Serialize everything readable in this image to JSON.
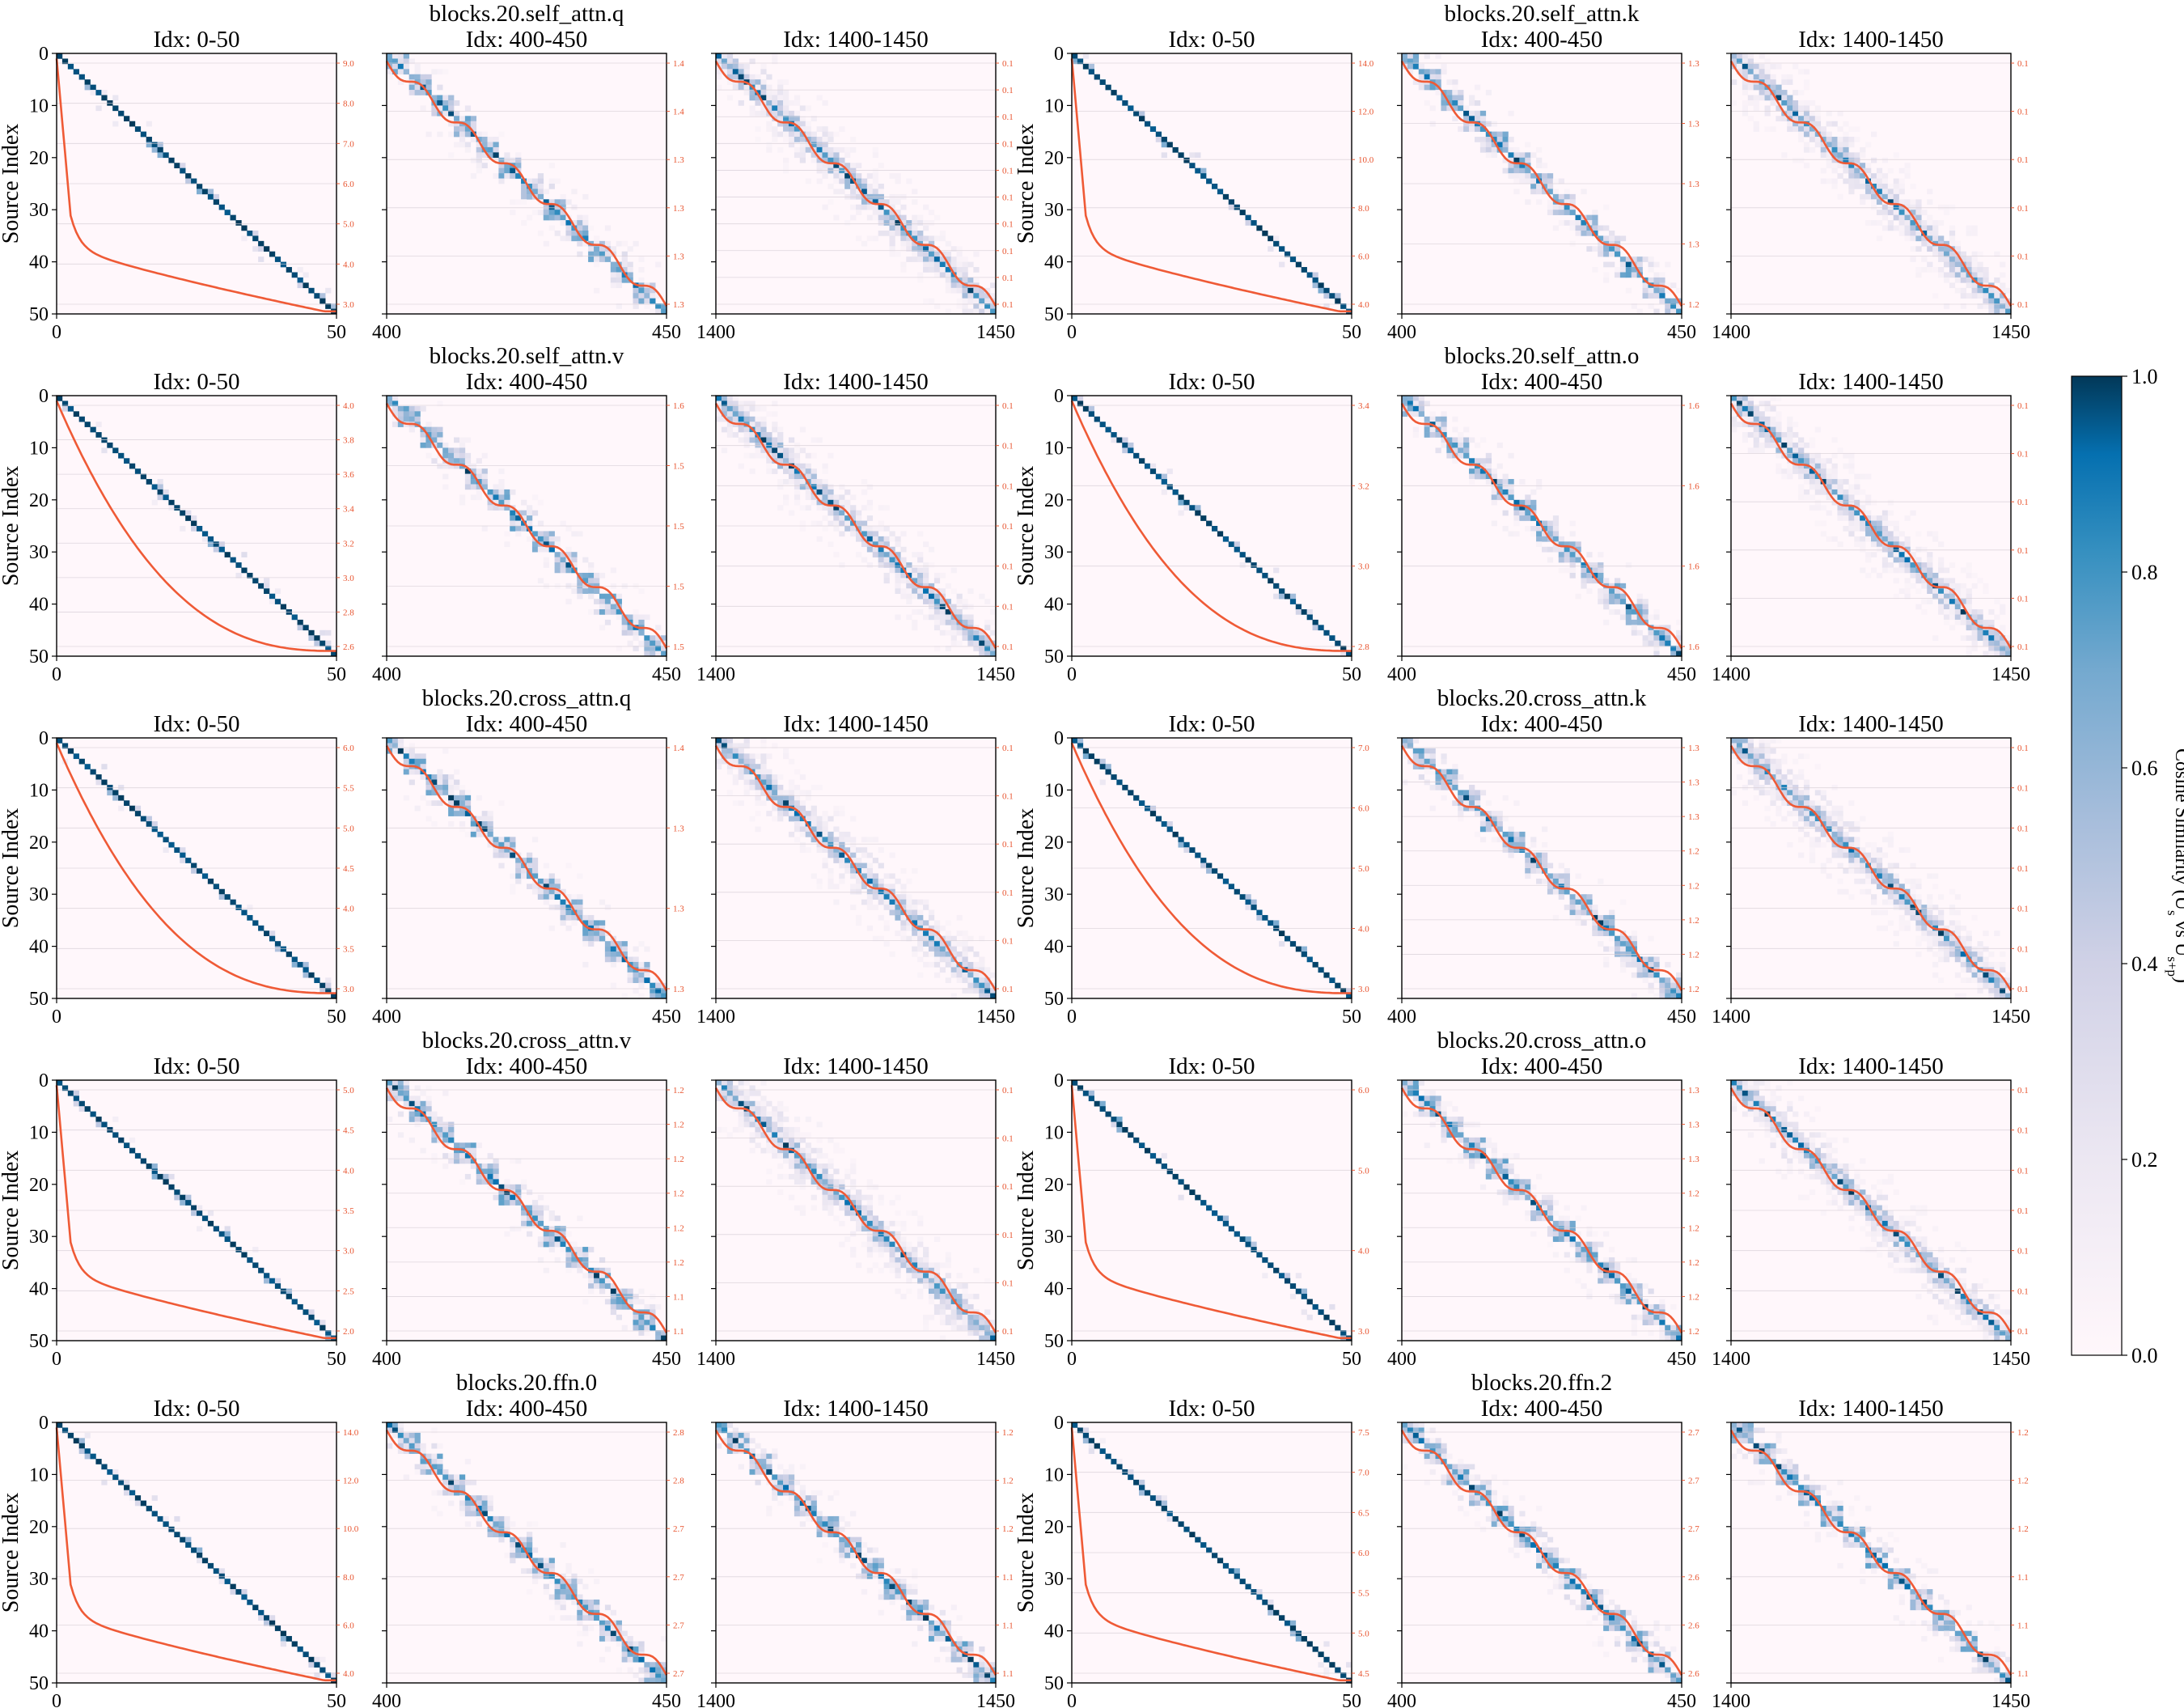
{
  "figure": {
    "ylabel": "Source Index",
    "colors": {
      "heat_low": "#fff7fb",
      "heat_mid": "#74a9cf",
      "heat_high": "#023858",
      "line": "#ef5a36",
      "right_tick": "#e8542f"
    }
  },
  "colorbar": {
    "label": "Cosine Similarity (U",
    "label_sub_s": "s",
    "label_mid": " vs U",
    "label_sub_sp": "s+p",
    "label_end": ")",
    "range": [
      0.0,
      1.0
    ],
    "ticks": [
      "0.0",
      "0.2",
      "0.4",
      "0.6",
      "0.8",
      "1.0"
    ]
  },
  "chart_data": [
    {
      "layer": "blocks.20.self_attn.q",
      "panels": [
        {
          "title": "Idx: 0-50",
          "start": 0,
          "end": 50,
          "type": "heatmap",
          "diag_style": "sharp",
          "right_ticks": [
            "9.0",
            "8.0",
            "7.0",
            "6.0",
            "5.0",
            "4.0",
            "3.0"
          ],
          "curve_shape": "steep"
        },
        {
          "title": "Idx: 400-450",
          "start": 400,
          "end": 450,
          "type": "heatmap",
          "diag_style": "block",
          "right_ticks": [
            "1.4",
            "1.4",
            "1.3",
            "1.3",
            "1.3",
            "1.3"
          ],
          "curve_shape": "linear"
        },
        {
          "title": "Idx: 1400-1450",
          "start": 1400,
          "end": 1450,
          "type": "heatmap",
          "diag_style": "diffuse",
          "right_ticks": [
            "0.1",
            "0.1",
            "0.1",
            "0.1",
            "0.1",
            "0.1",
            "0.1",
            "0.1",
            "0.1",
            "0.1"
          ],
          "curve_shape": "linear"
        }
      ]
    },
    {
      "layer": "blocks.20.self_attn.k",
      "panels": [
        {
          "title": "Idx: 0-50",
          "start": 0,
          "end": 50,
          "type": "heatmap",
          "diag_style": "sharp",
          "right_ticks": [
            "14.0",
            "12.0",
            "10.0",
            "8.0",
            "6.0",
            "4.0"
          ],
          "curve_shape": "steep"
        },
        {
          "title": "Idx: 400-450",
          "start": 400,
          "end": 450,
          "type": "heatmap",
          "diag_style": "block",
          "right_ticks": [
            "1.3",
            "1.3",
            "1.3",
            "1.3",
            "1.2"
          ],
          "curve_shape": "linear"
        },
        {
          "title": "Idx: 1400-1450",
          "start": 1400,
          "end": 1450,
          "type": "heatmap",
          "diag_style": "diffuse",
          "right_ticks": [
            "0.1",
            "0.1",
            "0.1",
            "0.1",
            "0.1",
            "0.1"
          ],
          "curve_shape": "linear"
        }
      ]
    },
    {
      "layer": "blocks.20.self_attn.v",
      "panels": [
        {
          "title": "Idx: 0-50",
          "start": 0,
          "end": 50,
          "type": "heatmap",
          "diag_style": "sharp",
          "right_ticks": [
            "4.0",
            "3.8",
            "3.6",
            "3.4",
            "3.2",
            "3.0",
            "2.8",
            "2.6"
          ],
          "curve_shape": "moderate"
        },
        {
          "title": "Idx: 400-450",
          "start": 400,
          "end": 450,
          "type": "heatmap",
          "diag_style": "block",
          "right_ticks": [
            "1.6",
            "1.5",
            "1.5",
            "1.5",
            "1.5"
          ],
          "curve_shape": "linear"
        },
        {
          "title": "Idx: 1400-1450",
          "start": 1400,
          "end": 1450,
          "type": "heatmap",
          "diag_style": "diffuse",
          "right_ticks": [
            "0.1",
            "0.1",
            "0.1",
            "0.1",
            "0.1",
            "0.1",
            "0.1"
          ],
          "curve_shape": "linear"
        }
      ]
    },
    {
      "layer": "blocks.20.self_attn.o",
      "panels": [
        {
          "title": "Idx: 0-50",
          "start": 0,
          "end": 50,
          "type": "heatmap",
          "diag_style": "sharp",
          "right_ticks": [
            "3.4",
            "3.2",
            "3.0",
            "2.8"
          ],
          "curve_shape": "moderate"
        },
        {
          "title": "Idx: 400-450",
          "start": 400,
          "end": 450,
          "type": "heatmap",
          "diag_style": "block",
          "right_ticks": [
            "1.6",
            "1.6",
            "1.6",
            "1.6"
          ],
          "curve_shape": "linear"
        },
        {
          "title": "Idx: 1400-1450",
          "start": 1400,
          "end": 1450,
          "type": "heatmap",
          "diag_style": "diffuse",
          "right_ticks": [
            "0.1",
            "0.1",
            "0.1",
            "0.1",
            "0.1",
            "0.1"
          ],
          "curve_shape": "linear"
        }
      ]
    },
    {
      "layer": "blocks.20.cross_attn.q",
      "panels": [
        {
          "title": "Idx: 0-50",
          "start": 0,
          "end": 50,
          "type": "heatmap",
          "diag_style": "sharp",
          "right_ticks": [
            "6.0",
            "5.5",
            "5.0",
            "4.5",
            "4.0",
            "3.5",
            "3.0"
          ],
          "curve_shape": "moderate"
        },
        {
          "title": "Idx: 400-450",
          "start": 400,
          "end": 450,
          "type": "heatmap",
          "diag_style": "block",
          "right_ticks": [
            "1.4",
            "1.3",
            "1.3",
            "1.3"
          ],
          "curve_shape": "linear"
        },
        {
          "title": "Idx: 1400-1450",
          "start": 1400,
          "end": 1450,
          "type": "heatmap",
          "diag_style": "diffuse",
          "right_ticks": [
            "0.1",
            "0.1",
            "0.1",
            "0.1",
            "0.1",
            "0.1"
          ],
          "curve_shape": "linear"
        }
      ]
    },
    {
      "layer": "blocks.20.cross_attn.k",
      "panels": [
        {
          "title": "Idx: 0-50",
          "start": 0,
          "end": 50,
          "type": "heatmap",
          "diag_style": "sharp",
          "right_ticks": [
            "7.0",
            "6.0",
            "5.0",
            "4.0",
            "3.0"
          ],
          "curve_shape": "moderate"
        },
        {
          "title": "Idx: 400-450",
          "start": 400,
          "end": 450,
          "type": "heatmap",
          "diag_style": "block",
          "right_ticks": [
            "1.3",
            "1.3",
            "1.3",
            "1.2",
            "1.2",
            "1.2",
            "1.2",
            "1.2"
          ],
          "curve_shape": "linear"
        },
        {
          "title": "Idx: 1400-1450",
          "start": 1400,
          "end": 1450,
          "type": "heatmap",
          "diag_style": "diffuse",
          "right_ticks": [
            "0.1",
            "0.1",
            "0.1",
            "0.1",
            "0.1",
            "0.1",
            "0.1"
          ],
          "curve_shape": "linear"
        }
      ]
    },
    {
      "layer": "blocks.20.cross_attn.v",
      "panels": [
        {
          "title": "Idx: 0-50",
          "start": 0,
          "end": 50,
          "type": "heatmap",
          "diag_style": "sharp",
          "right_ticks": [
            "5.0",
            "4.5",
            "4.0",
            "3.5",
            "3.0",
            "2.5",
            "2.0"
          ],
          "curve_shape": "steep"
        },
        {
          "title": "Idx: 400-450",
          "start": 400,
          "end": 450,
          "type": "heatmap",
          "diag_style": "block",
          "right_ticks": [
            "1.2",
            "1.2",
            "1.2",
            "1.2",
            "1.2",
            "1.2",
            "1.1",
            "1.1"
          ],
          "curve_shape": "linear"
        },
        {
          "title": "Idx: 1400-1450",
          "start": 1400,
          "end": 1450,
          "type": "heatmap",
          "diag_style": "diffuse",
          "right_ticks": [
            "0.1",
            "0.1",
            "0.1",
            "0.1",
            "0.1",
            "0.1"
          ],
          "curve_shape": "linear"
        }
      ]
    },
    {
      "layer": "blocks.20.cross_attn.o",
      "panels": [
        {
          "title": "Idx: 0-50",
          "start": 0,
          "end": 50,
          "type": "heatmap",
          "diag_style": "sharp",
          "right_ticks": [
            "6.0",
            "5.0",
            "4.0",
            "3.0"
          ],
          "curve_shape": "steep"
        },
        {
          "title": "Idx: 400-450",
          "start": 400,
          "end": 450,
          "type": "heatmap",
          "diag_style": "block",
          "right_ticks": [
            "1.3",
            "1.3",
            "1.3",
            "1.2",
            "1.2",
            "1.2",
            "1.2",
            "1.2"
          ],
          "curve_shape": "linear"
        },
        {
          "title": "Idx: 1400-1450",
          "start": 1400,
          "end": 1450,
          "type": "heatmap",
          "diag_style": "diffuse",
          "right_ticks": [
            "0.1",
            "0.1",
            "0.1",
            "0.1",
            "0.1",
            "0.1",
            "0.1"
          ],
          "curve_shape": "linear"
        }
      ]
    },
    {
      "layer": "blocks.20.ffn.0",
      "panels": [
        {
          "title": "Idx: 0-50",
          "start": 0,
          "end": 50,
          "type": "heatmap",
          "diag_style": "sharp",
          "right_ticks": [
            "14.0",
            "12.0",
            "10.0",
            "8.0",
            "6.0",
            "4.0"
          ],
          "curve_shape": "steep"
        },
        {
          "title": "Idx: 400-450",
          "start": 400,
          "end": 450,
          "type": "heatmap",
          "diag_style": "block",
          "right_ticks": [
            "2.8",
            "2.8",
            "2.7",
            "2.7",
            "2.7",
            "2.7"
          ],
          "curve_shape": "linear"
        },
        {
          "title": "Idx: 1400-1450",
          "start": 1400,
          "end": 1450,
          "type": "heatmap",
          "diag_style": "block",
          "right_ticks": [
            "1.2",
            "1.2",
            "1.2",
            "1.1",
            "1.1",
            "1.1"
          ],
          "curve_shape": "linear"
        }
      ]
    },
    {
      "layer": "blocks.20.ffn.2",
      "panels": [
        {
          "title": "Idx: 0-50",
          "start": 0,
          "end": 50,
          "type": "heatmap",
          "diag_style": "sharp",
          "right_ticks": [
            "7.5",
            "7.0",
            "6.5",
            "6.0",
            "5.5",
            "5.0",
            "4.5"
          ],
          "curve_shape": "steep"
        },
        {
          "title": "Idx: 400-450",
          "start": 400,
          "end": 450,
          "type": "heatmap",
          "diag_style": "block",
          "right_ticks": [
            "2.7",
            "2.7",
            "2.7",
            "2.6",
            "2.6",
            "2.6"
          ],
          "curve_shape": "linear"
        },
        {
          "title": "Idx: 1400-1450",
          "start": 1400,
          "end": 1450,
          "type": "heatmap",
          "diag_style": "block",
          "right_ticks": [
            "1.2",
            "1.2",
            "1.2",
            "1.1",
            "1.1",
            "1.1"
          ],
          "curve_shape": "linear"
        }
      ]
    }
  ]
}
